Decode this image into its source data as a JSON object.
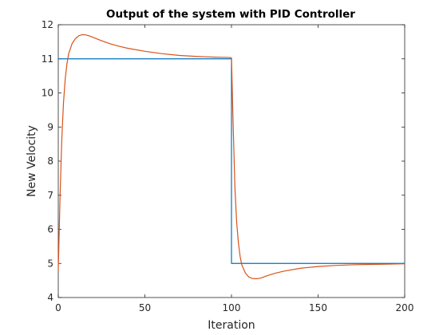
{
  "chart_data": {
    "type": "line",
    "title": "Output of the system with PID Controller",
    "xlabel": "Iteration",
    "ylabel": "New Velocity",
    "xlim": [
      0,
      200
    ],
    "ylim": [
      4,
      12
    ],
    "xticks": [
      0,
      50,
      100,
      150,
      200
    ],
    "yticks": [
      4,
      5,
      6,
      7,
      8,
      9,
      10,
      11,
      12
    ],
    "grid": false,
    "legend": "none",
    "series": [
      {
        "color": "#0072BD",
        "style": "step",
        "x": [
          0,
          100,
          100,
          200
        ],
        "y": [
          11,
          11,
          5,
          5
        ]
      },
      {
        "color": "#D95319",
        "style": "line",
        "x": [
          0,
          1,
          2,
          3,
          4,
          5,
          6,
          8,
          10,
          12,
          14,
          16,
          18,
          20,
          25,
          30,
          35,
          40,
          50,
          60,
          70,
          80,
          90,
          99,
          100,
          101,
          102,
          103,
          104,
          105,
          106,
          108,
          110,
          112,
          114,
          116,
          118,
          120,
          125,
          130,
          140,
          150,
          160,
          170,
          180,
          190,
          200
        ],
        "y": [
          4.8,
          6.9,
          8.6,
          9.7,
          10.4,
          10.85,
          11.15,
          11.45,
          11.6,
          11.68,
          11.71,
          11.7,
          11.67,
          11.63,
          11.53,
          11.44,
          11.37,
          11.31,
          11.22,
          11.15,
          11.1,
          11.07,
          11.05,
          11.04,
          11.03,
          9.0,
          7.2,
          6.2,
          5.6,
          5.2,
          4.95,
          4.72,
          4.6,
          4.56,
          4.55,
          4.56,
          4.59,
          4.63,
          4.71,
          4.77,
          4.86,
          4.91,
          4.94,
          4.96,
          4.97,
          4.98,
          4.99
        ]
      }
    ]
  }
}
